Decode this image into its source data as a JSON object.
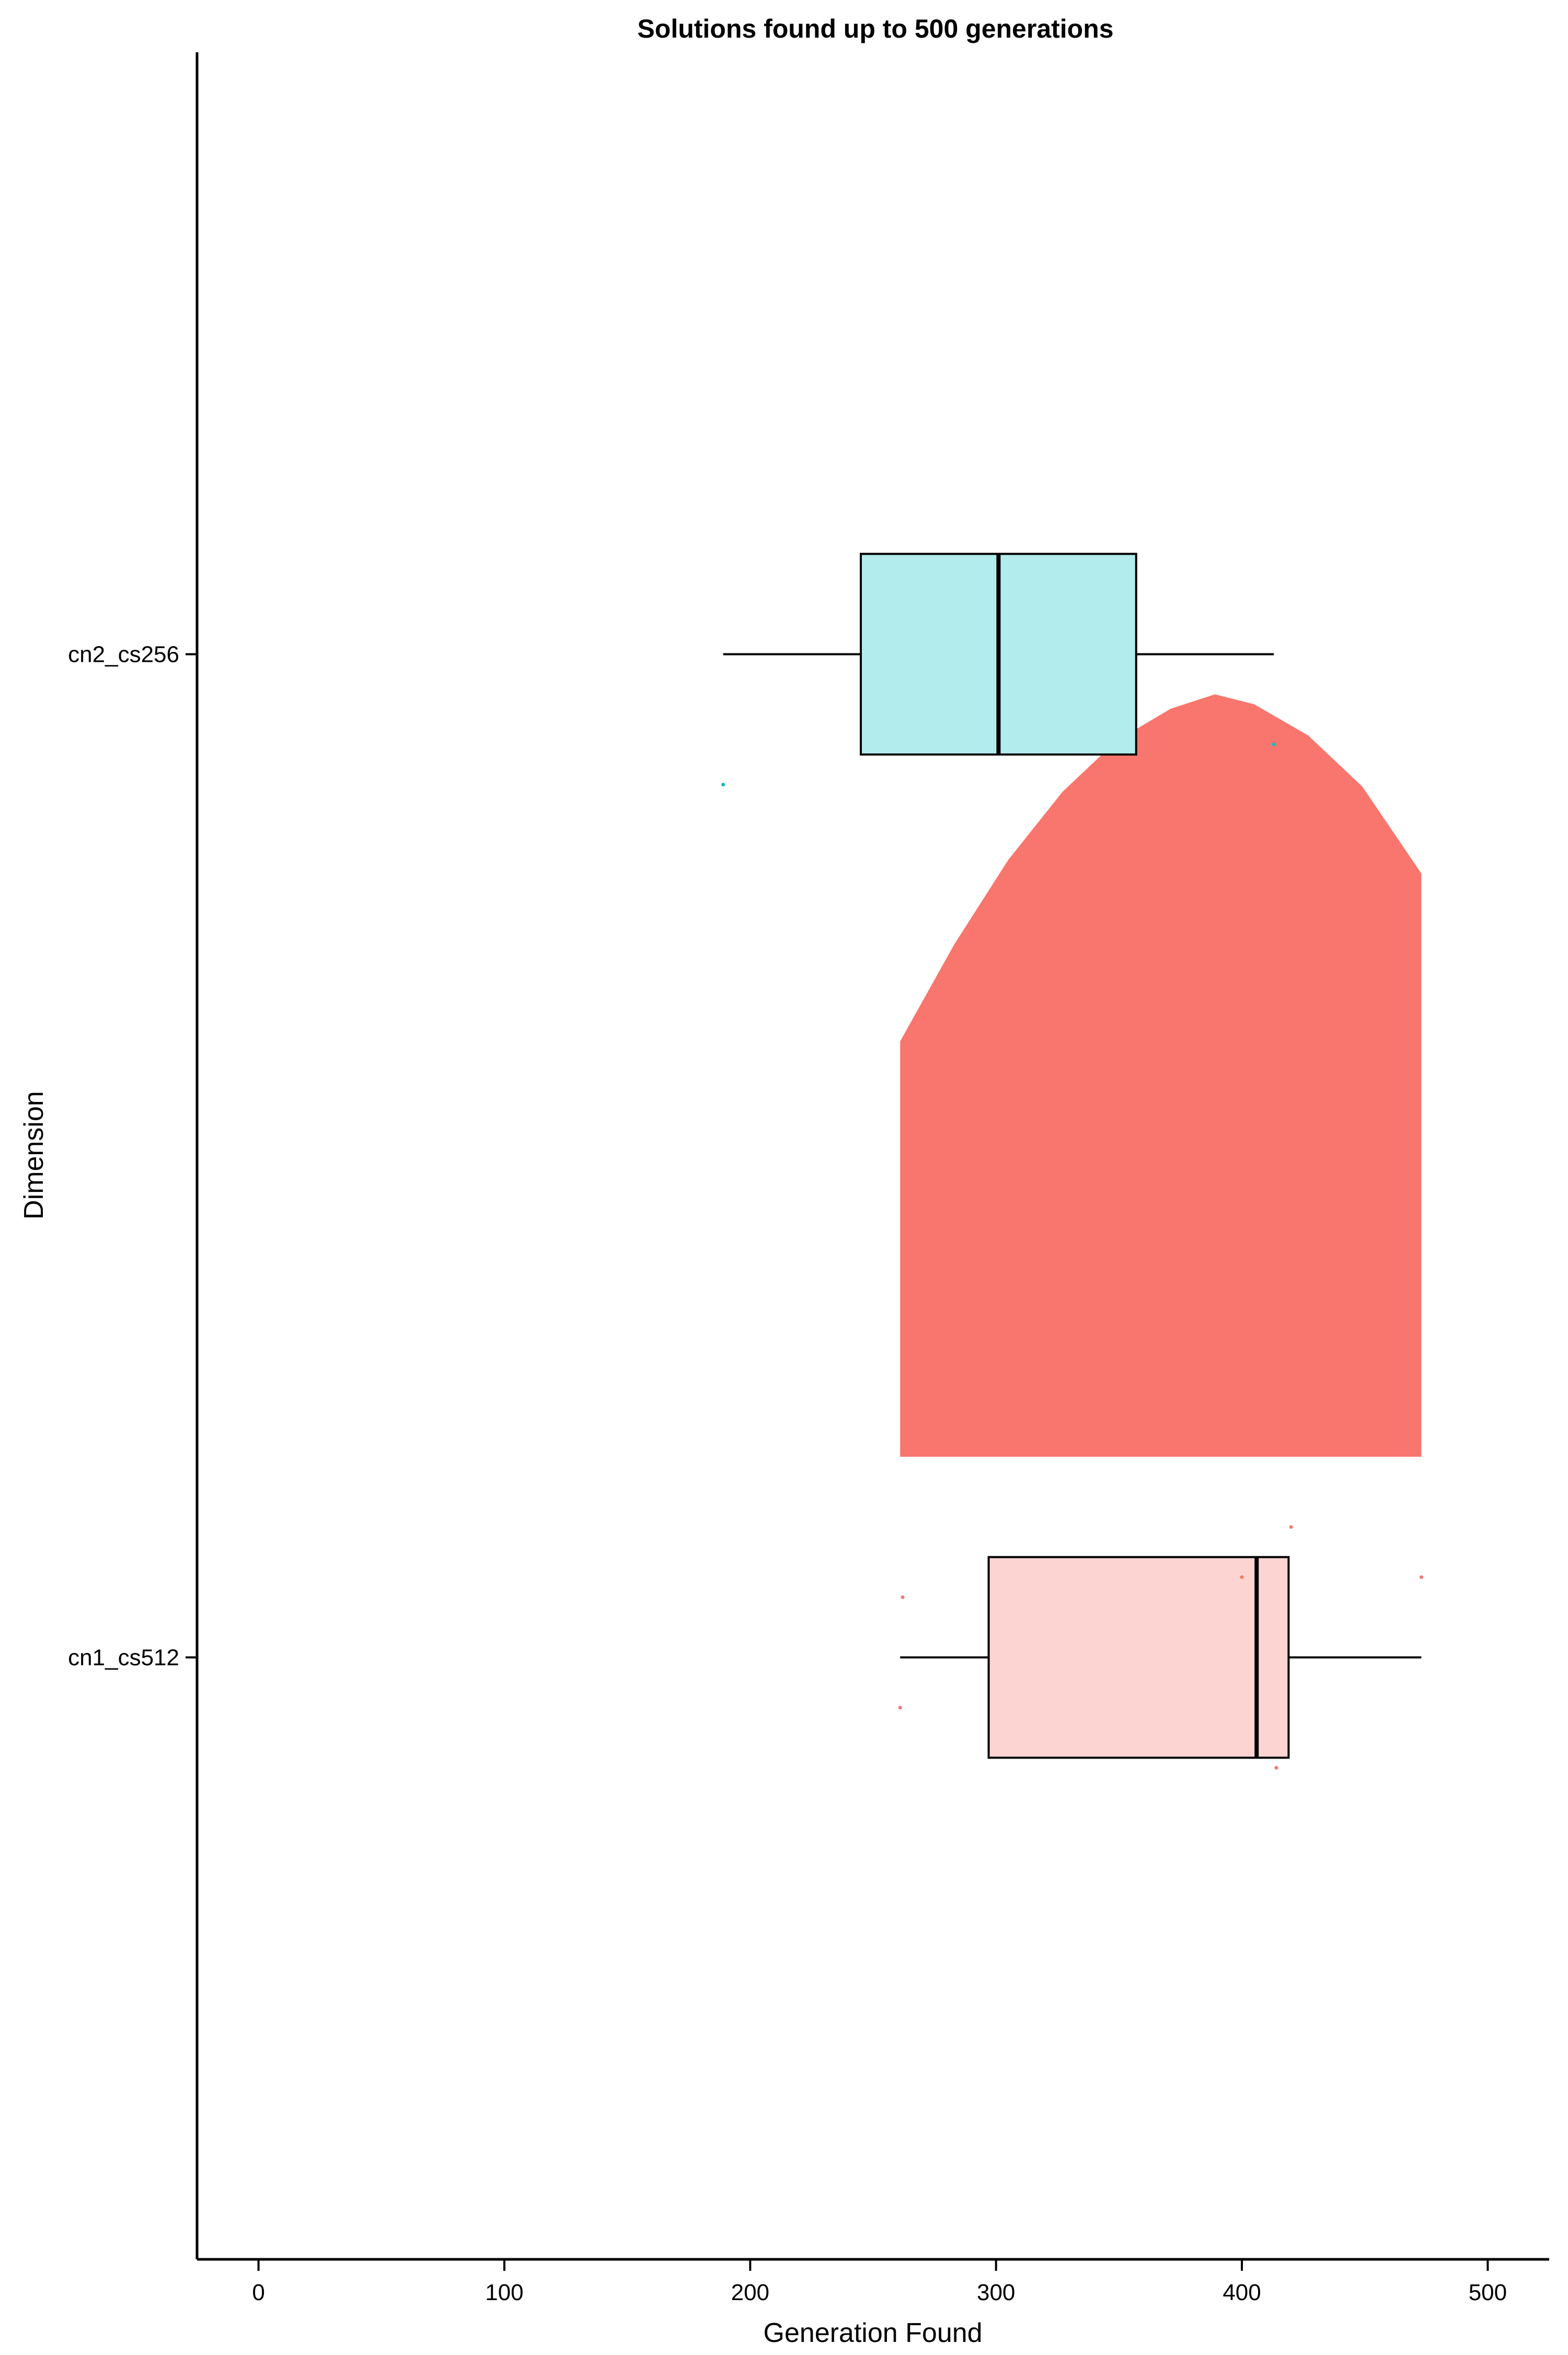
{
  "chart_data": {
    "type": "raincloud",
    "title": "Solutions found up to 500 generations",
    "xlabel": "Generation Found",
    "ylabel": "Dimension",
    "xlim": [
      -25,
      525
    ],
    "x_ticks": [
      0,
      100,
      200,
      300,
      400,
      500
    ],
    "x_tick_labels": [
      "0",
      "100",
      "200",
      "300",
      "400",
      "500"
    ],
    "grid": false,
    "legend": "none",
    "categories": [
      "cn1_cs512",
      "cn2_cs256"
    ],
    "series": [
      {
        "category": "cn1_cs512",
        "color": "#F8766D",
        "box_fill": "#FCD5D2",
        "box": {
          "min": 261,
          "q1": 297,
          "median": 406,
          "q3": 419,
          "max": 473
        },
        "points": [
          {
            "x": 262,
            "jitter": 0.06
          },
          {
            "x": 261,
            "jitter": -0.05
          },
          {
            "x": 400,
            "jitter": 0.08
          },
          {
            "x": 420,
            "jitter": 0.13
          },
          {
            "x": 414,
            "jitter": -0.11
          },
          {
            "x": 473,
            "jitter": 0.08
          }
        ],
        "density": {
          "x": [
            261,
            283,
            305,
            327,
            349,
            371,
            389,
            405,
            427,
            449,
            473
          ],
          "y": [
            0.545,
            0.672,
            0.783,
            0.872,
            0.939,
            0.981,
            1.0,
            0.987,
            0.946,
            0.879,
            0.765
          ]
        }
      },
      {
        "category": "cn2_cs256",
        "color": "#00BFC4",
        "box_fill": "#B2ECED",
        "box": {
          "min": 189,
          "q1": 245,
          "median": 301,
          "q3": 357,
          "max": 413
        },
        "points": [
          {
            "x": 189,
            "jitter": -0.13
          },
          {
            "x": 413,
            "jitter": -0.09
          }
        ]
      }
    ]
  }
}
